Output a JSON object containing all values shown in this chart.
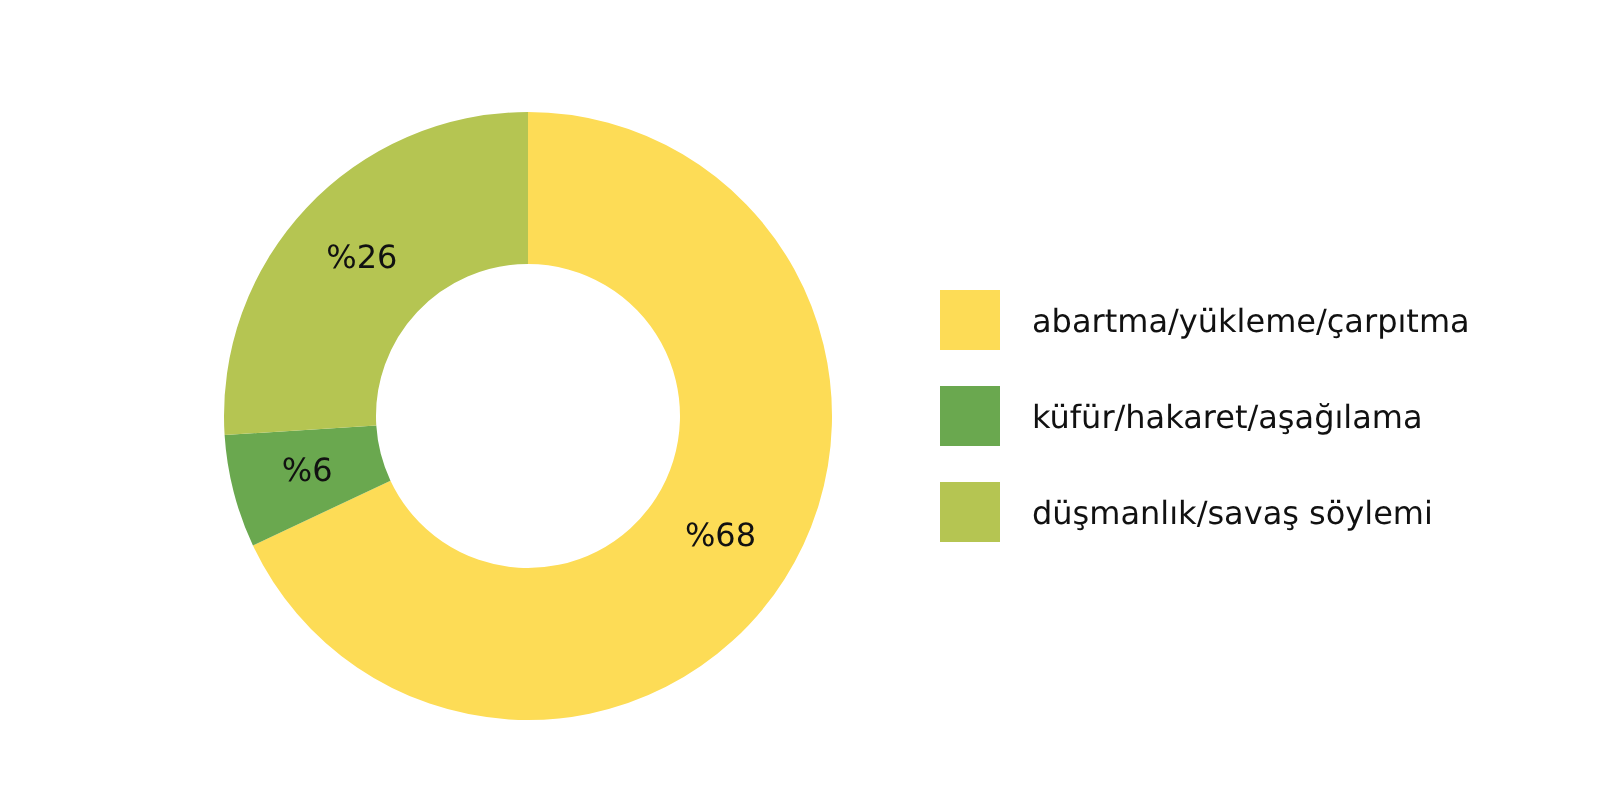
{
  "chart_data": {
    "type": "donut",
    "categories": [
      "abartma/yükleme/çarpıtma",
      "küfür/hakaret/aşağılama",
      "düşmanlık/savaş söylemi"
    ],
    "values": [
      68,
      6,
      26
    ],
    "colors": [
      "#fddc56",
      "#6aa84f",
      "#b5c552"
    ],
    "value_labels": [
      "%68",
      "%6",
      "%26"
    ],
    "legend": "right"
  }
}
